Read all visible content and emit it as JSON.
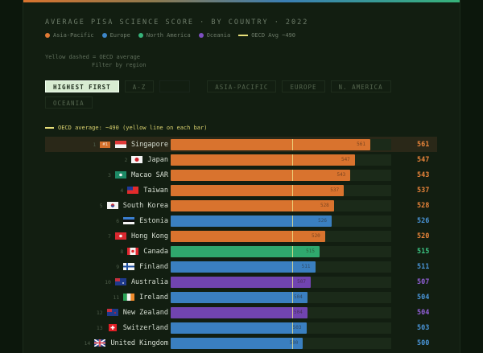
{
  "header": {
    "title": "AVERAGE PISA SCIENCE SCORE · BY COUNTRY · 2022"
  },
  "legend": [
    {
      "label": "Asia-Pacific",
      "color": "#e07a35",
      "type": "dot"
    },
    {
      "label": "Europe",
      "color": "#3d86c8",
      "type": "dot"
    },
    {
      "label": "North America",
      "color": "#37b37a",
      "type": "dot"
    },
    {
      "label": "Oceania",
      "color": "#7d4fc0",
      "type": "dot"
    },
    {
      "label": "OECD Avg ~490",
      "color": "#e8e07a",
      "type": "dash"
    }
  ],
  "notes": {
    "line1": "Yellow dashed = OECD average",
    "line2": "Filter by region"
  },
  "buttons": {
    "sort_highest": "HIGHEST FIRST",
    "sort_az": "A-Z",
    "spacer": "",
    "asia_pacific": "ASIA-PACIFIC",
    "europe": "EUROPE",
    "n_america": "N. AMERICA",
    "oceania": "OCEANIA"
  },
  "oecd_note": "OECD average: ~490 (yellow line on each bar)",
  "top_badge": "#1",
  "colors": {
    "asia": "#d9732e",
    "europe": "#3a7fc0",
    "namerica": "#2fa86d",
    "oceania": "#7144b0",
    "score_asia": "#e8843a",
    "score_europe": "#4a95d8",
    "score_namerica": "#3cc584",
    "score_oceania": "#9260d8"
  },
  "chart_data": {
    "type": "bar",
    "orientation": "horizontal",
    "title": "AVERAGE PISA SCIENCE SCORE · BY COUNTRY · 2022",
    "xlabel": "",
    "ylabel": "",
    "reference_line": {
      "label": "OECD average",
      "value": 490
    },
    "sort": "highest first",
    "categories": [
      "Singapore",
      "Japan",
      "Macao SAR",
      "Taiwan",
      "South Korea",
      "Estonia",
      "Hong Kong",
      "Canada",
      "Finland",
      "Australia",
      "Ireland",
      "New Zealand",
      "Switzerland",
      "United Kingdom"
    ],
    "values": [
      561,
      547,
      543,
      537,
      528,
      526,
      520,
      515,
      511,
      507,
      504,
      504,
      503,
      500
    ],
    "regions": [
      "Asia-Pacific",
      "Asia-Pacific",
      "Asia-Pacific",
      "Asia-Pacific",
      "Asia-Pacific",
      "Europe",
      "Asia-Pacific",
      "North America",
      "Europe",
      "Oceania",
      "Europe",
      "Oceania",
      "Europe",
      "Europe"
    ],
    "ranks": [
      1,
      2,
      3,
      4,
      5,
      6,
      7,
      8,
      9,
      10,
      11,
      12,
      13,
      14
    ]
  },
  "rows": [
    {
      "rank": "1",
      "name": "Singapore",
      "score": "561",
      "region": "asia",
      "flag": "sg"
    },
    {
      "rank": "2",
      "name": "Japan",
      "score": "547",
      "region": "asia",
      "flag": "jp"
    },
    {
      "rank": "3",
      "name": "Macao SAR",
      "score": "543",
      "region": "asia",
      "flag": "mo"
    },
    {
      "rank": "4",
      "name": "Taiwan",
      "score": "537",
      "region": "asia",
      "flag": "tw"
    },
    {
      "rank": "5",
      "name": "South Korea",
      "score": "528",
      "region": "asia",
      "flag": "kr"
    },
    {
      "rank": "6",
      "name": "Estonia",
      "score": "526",
      "region": "europe",
      "flag": "ee"
    },
    {
      "rank": "7",
      "name": "Hong Kong",
      "score": "520",
      "region": "asia",
      "flag": "hk"
    },
    {
      "rank": "8",
      "name": "Canada",
      "score": "515",
      "region": "namerica",
      "flag": "ca"
    },
    {
      "rank": "9",
      "name": "Finland",
      "score": "511",
      "region": "europe",
      "flag": "fi"
    },
    {
      "rank": "10",
      "name": "Australia",
      "score": "507",
      "region": "oceania",
      "flag": "au"
    },
    {
      "rank": "11",
      "name": "Ireland",
      "score": "504",
      "region": "europe",
      "flag": "ie"
    },
    {
      "rank": "12",
      "name": "New Zealand",
      "score": "504",
      "region": "oceania",
      "flag": "nz"
    },
    {
      "rank": "13",
      "name": "Switzerland",
      "score": "503",
      "region": "europe",
      "flag": "ch"
    },
    {
      "rank": "14",
      "name": "United Kingdom",
      "score": "500",
      "region": "europe",
      "flag": "gb"
    }
  ]
}
